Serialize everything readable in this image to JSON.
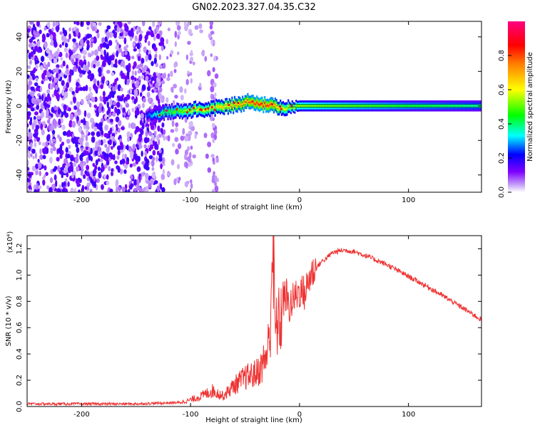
{
  "title": "GN02.2023.327.04.35.C32",
  "chart_data": [
    {
      "type": "heatmap",
      "title": "GN02.2023.327.04.35.C32",
      "xlabel": "Height of straight line (km)",
      "ylabel": "Frequency (Hz)",
      "xlim": [
        -250,
        167
      ],
      "ylim": [
        -50,
        49
      ],
      "x_ticks": [
        "-200",
        "-100",
        "0",
        "100"
      ],
      "y_ticks": [
        "-40",
        "-20",
        "0",
        "20",
        "40"
      ],
      "x_tick_values": [
        -200,
        -100,
        0,
        100
      ],
      "y_tick_values": [
        -40,
        -20,
        0,
        20,
        40
      ],
      "colorbar": {
        "label": "Normalized spectral amplitude",
        "range": [
          0,
          1
        ],
        "ticks": [
          "0.0",
          "0.2",
          "0.4",
          "0.6",
          "0.8"
        ],
        "tick_values": [
          0.0,
          0.2,
          0.4,
          0.6,
          0.8
        ],
        "colormap": [
          "#ffffff",
          "#7f00ff",
          "#0000ff",
          "#00ffff",
          "#00ff00",
          "#ffff00",
          "#ff7f00",
          "#ff0000",
          "#ff0080"
        ]
      },
      "ridge": {
        "x": [
          -140,
          -125,
          -115,
          -105,
          -95,
          -85,
          -75,
          -65,
          -55,
          -45,
          -35,
          -25,
          -15,
          0,
          50,
          100,
          167
        ],
        "y": [
          -6,
          -4,
          -3,
          -3,
          -2,
          -2,
          -1,
          0,
          1,
          3,
          1,
          0,
          -1,
          0,
          0,
          0,
          0
        ],
        "amplitude": [
          0.25,
          0.45,
          0.5,
          0.55,
          0.6,
          0.6,
          0.65,
          0.7,
          0.75,
          0.8,
          0.85,
          0.8,
          0.6,
          0.55,
          0.5,
          0.45,
          0.4
        ]
      },
      "noise_region": {
        "x_end": -75,
        "dense_x_end": -125
      }
    },
    {
      "type": "line",
      "xlabel": "Height of straight line (km)",
      "ylabel": "SNR (10 * v/v)",
      "y_multiplier": "(x10⁴)",
      "xlim": [
        -250,
        167
      ],
      "ylim": [
        0.0,
        1.3
      ],
      "x_ticks": [
        "-200",
        "-100",
        "0",
        "100"
      ],
      "y_ticks": [
        "0.0",
        "0.2",
        "0.4",
        "0.6",
        "0.8",
        "1.0",
        "1.2"
      ],
      "x_tick_values": [
        -200,
        -100,
        0,
        100
      ],
      "y_tick_values": [
        0.0,
        0.2,
        0.4,
        0.6,
        0.8,
        1.0,
        1.2
      ],
      "color": "#ee3333",
      "series": [
        {
          "x": [
            -250,
            -200,
            -150,
            -110,
            -100,
            -90,
            -80,
            -70,
            -60,
            -50,
            -40,
            -35,
            -30,
            -27,
            -25,
            -22,
            -20,
            -18,
            -15,
            -12,
            -10,
            -5,
            0,
            5,
            10,
            15,
            20,
            25,
            30,
            40,
            50,
            60,
            80,
            100,
            120,
            140,
            167
          ],
          "y": [
            0.02,
            0.02,
            0.02,
            0.03,
            0.05,
            0.08,
            0.12,
            0.08,
            0.16,
            0.22,
            0.25,
            0.3,
            0.4,
            0.55,
            1.28,
            0.55,
            0.65,
            0.62,
            0.8,
            0.85,
            0.75,
            0.82,
            0.88,
            0.86,
            1.0,
            1.05,
            1.1,
            1.13,
            1.17,
            1.19,
            1.18,
            1.15,
            1.08,
            0.99,
            0.9,
            0.8,
            0.66
          ]
        }
      ]
    }
  ]
}
